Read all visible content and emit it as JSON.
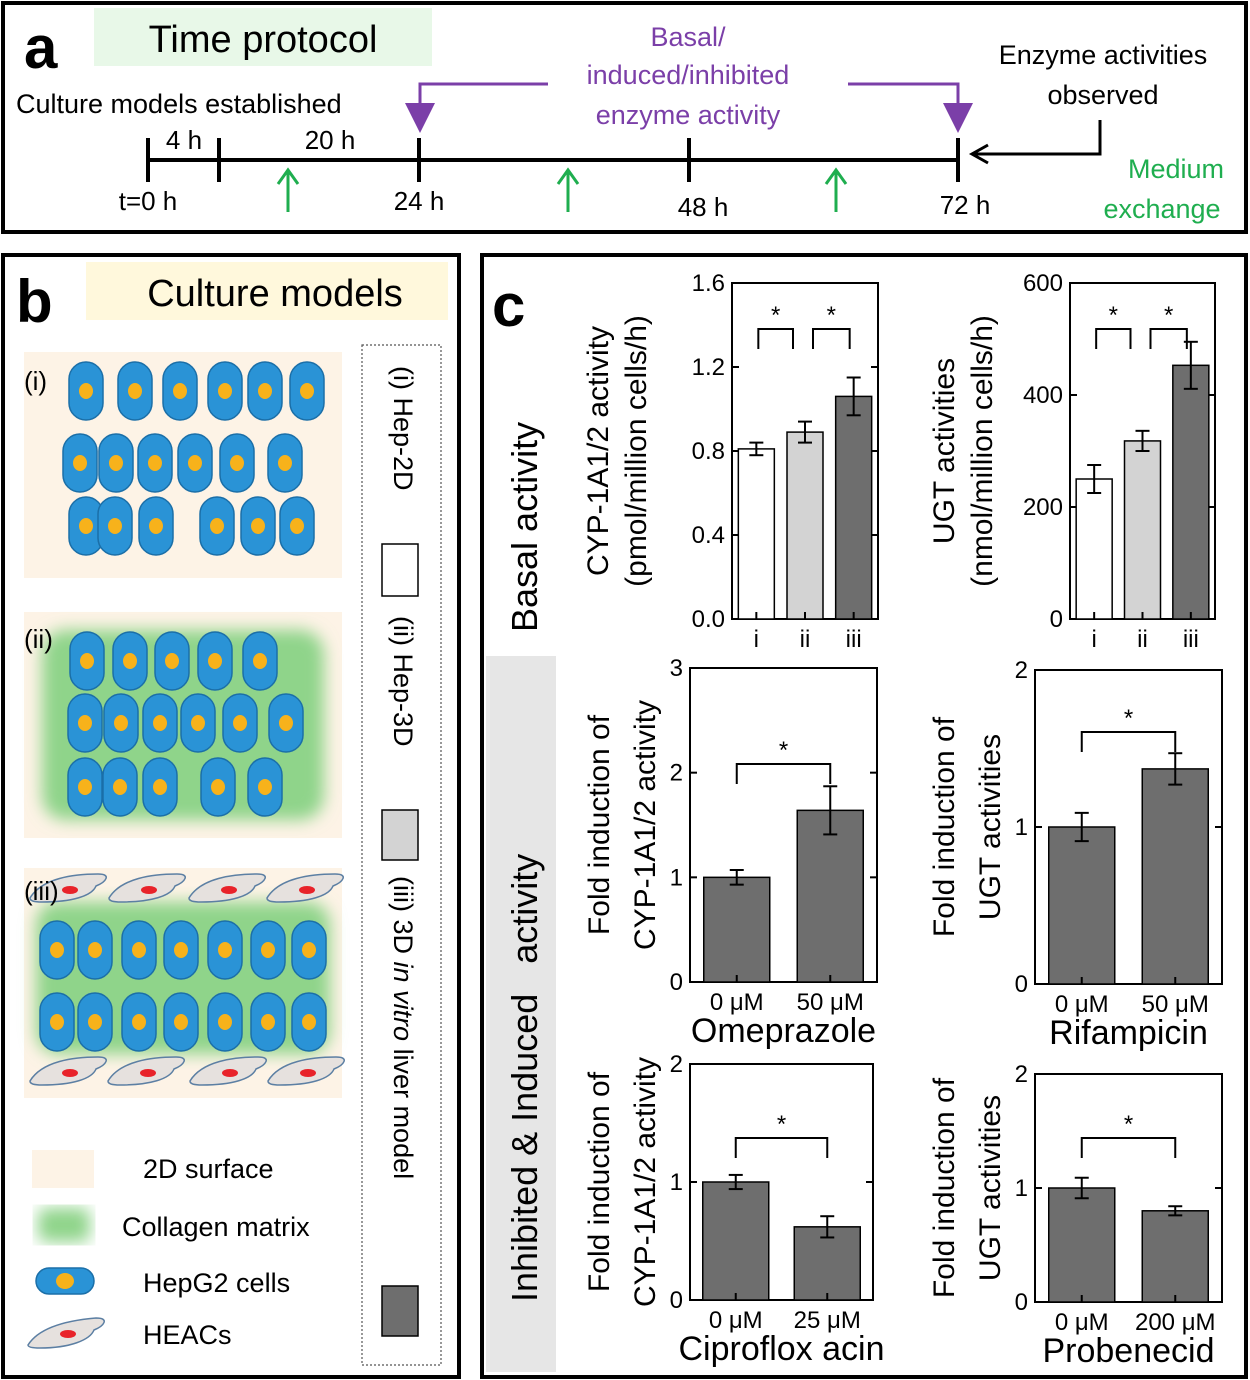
{
  "panel_a": {
    "letter": "a",
    "title": "Time protocol",
    "established": "Culture models established",
    "purple_label": [
      "Basal/",
      "induced/inhibited",
      "enzyme activity"
    ],
    "observed_label": [
      "Enzyme activities",
      "observed"
    ],
    "medium_label": [
      "Medium",
      "exchange"
    ],
    "interval_labels": [
      "4 h",
      "20 h"
    ],
    "time_labels": [
      "t=0 h",
      "24 h",
      "48 h",
      "72 h"
    ],
    "colors": {
      "purple": "#7b3fa8",
      "green": "#1fae4f",
      "title_bg": "#e8f8e8"
    }
  },
  "panel_b": {
    "letter": "b",
    "title": "Culture models",
    "model_labels": [
      "(i)",
      "(ii)",
      "(iii)"
    ],
    "legend": {
      "items": [
        "2D surface",
        "Collagen matrix",
        "HepG2 cells",
        "HEACs"
      ]
    },
    "key": {
      "items": [
        {
          "roman": "(i)",
          "text": "Hep-2D",
          "color": "#ffffff"
        },
        {
          "roman": "(ii)",
          "text": "Hep-3D",
          "color": "#d3d3d3"
        },
        {
          "roman": "(iii)",
          "text_pre": "3D ",
          "text_italic": "in vitro",
          "text_post": " liver model",
          "color": "#6e6e6e"
        }
      ]
    },
    "colors": {
      "surface": "#fdf3e6",
      "collagen": "#8fd48a",
      "cell": "#2a93d6",
      "nucleus": "#f7b21b",
      "heac": "#e6e1de",
      "heac_nucleus": "#e8232a",
      "title_bg": "#fff8dc"
    }
  },
  "panel_c": {
    "letter": "c",
    "row_label_1": "Basal activity",
    "row_label_2": "Inhibited & Induced   activity"
  },
  "chart_data": [
    {
      "id": "cyp_basal",
      "type": "bar",
      "ylabel_lines": [
        "CYP-1A1/2 activity",
        "(pmol/million cells/h)"
      ],
      "categories": [
        "i",
        "ii",
        "iii"
      ],
      "values": [
        0.81,
        0.89,
        1.06
      ],
      "errors": [
        0.03,
        0.05,
        0.09
      ],
      "bar_colors": [
        "#ffffff",
        "#d3d3d3",
        "#6e6e6e"
      ],
      "ylim": [
        0,
        1.6
      ],
      "yticks": [
        "0.0",
        "0.4",
        "0.8",
        "1.2",
        "1.6"
      ],
      "significance": [
        {
          "pair": [
            0,
            1
          ],
          "label": "*"
        },
        {
          "pair": [
            1,
            2
          ],
          "label": "*"
        }
      ],
      "xlabel": ""
    },
    {
      "id": "ugt_basal",
      "type": "bar",
      "ylabel_lines": [
        "UGT activities",
        "(nmol/million cells/h)"
      ],
      "categories": [
        "i",
        "ii",
        "iii"
      ],
      "values": [
        250,
        318,
        453
      ],
      "errors": [
        25,
        18,
        42
      ],
      "bar_colors": [
        "#ffffff",
        "#d3d3d3",
        "#6e6e6e"
      ],
      "ylim": [
        0,
        600
      ],
      "yticks": [
        "0",
        "200",
        "400",
        "600"
      ],
      "significance": [
        {
          "pair": [
            0,
            1
          ],
          "label": "*"
        },
        {
          "pair": [
            1,
            2
          ],
          "label": "*"
        }
      ],
      "xlabel": ""
    },
    {
      "id": "cyp_omeprazole",
      "type": "bar",
      "ylabel_lines": [
        "Fold induction of",
        "CYP-1A1/2 activity"
      ],
      "categories": [
        "0  μM",
        "50  μM"
      ],
      "values": [
        1.0,
        1.64
      ],
      "errors": [
        0.07,
        0.23
      ],
      "bar_colors": [
        "#6e6e6e",
        "#6e6e6e"
      ],
      "ylim": [
        0,
        3
      ],
      "yticks": [
        "0",
        "1",
        "2",
        "3"
      ],
      "significance": [
        {
          "pair": [
            0,
            1
          ],
          "label": "*"
        }
      ],
      "xlabel": "Omeprazole"
    },
    {
      "id": "ugt_rifampicin",
      "type": "bar",
      "ylabel_lines": [
        "Fold induction of",
        "UGT activities"
      ],
      "categories": [
        "0  μM",
        "50  μM"
      ],
      "values": [
        1.0,
        1.37
      ],
      "errors": [
        0.09,
        0.1
      ],
      "bar_colors": [
        "#6e6e6e",
        "#6e6e6e"
      ],
      "ylim": [
        0,
        2
      ],
      "yticks": [
        "0",
        "1",
        "2"
      ],
      "significance": [
        {
          "pair": [
            0,
            1
          ],
          "label": "*"
        }
      ],
      "xlabel": "Rifampicin"
    },
    {
      "id": "cyp_ciprofloxacin",
      "type": "bar",
      "ylabel_lines": [
        "Fold induction of",
        "CYP-1A1/2 activity"
      ],
      "categories": [
        "0  μM",
        "25  μM"
      ],
      "values": [
        1.0,
        0.62
      ],
      "errors": [
        0.06,
        0.09
      ],
      "bar_colors": [
        "#6e6e6e",
        "#6e6e6e"
      ],
      "ylim": [
        0,
        2
      ],
      "yticks": [
        "0",
        "1",
        "2"
      ],
      "significance": [
        {
          "pair": [
            0,
            1
          ],
          "label": "*"
        }
      ],
      "xlabel": "Ciproflox acin"
    },
    {
      "id": "ugt_probenecid",
      "type": "bar",
      "ylabel_lines": [
        "Fold induction of",
        "UGT activities"
      ],
      "categories": [
        "0  μM",
        "200  μM"
      ],
      "values": [
        1.0,
        0.8
      ],
      "errors": [
        0.09,
        0.04
      ],
      "bar_colors": [
        "#6e6e6e",
        "#6e6e6e"
      ],
      "ylim": [
        0,
        2
      ],
      "yticks": [
        "0",
        "1",
        "2"
      ],
      "significance": [
        {
          "pair": [
            0,
            1
          ],
          "label": "*"
        }
      ],
      "xlabel": "Probenecid"
    }
  ]
}
